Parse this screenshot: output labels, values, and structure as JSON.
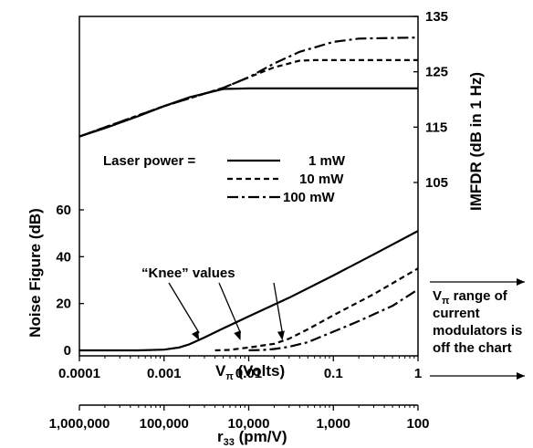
{
  "chart_data": {
    "type": "line",
    "x_axis": {
      "label_main": "V",
      "label_sub": "π",
      "label_rest": " (Volts)",
      "scale": "log",
      "range": [
        0.0001,
        1
      ],
      "ticks": [
        "0.0001",
        "0.001",
        "0.01",
        "0.1",
        "1"
      ],
      "tick_values": [
        0.0001,
        0.001,
        0.01,
        0.1,
        1
      ]
    },
    "secondary_x_axis": {
      "label_main": "r",
      "label_sub": "33",
      "label_rest": " (pm/V)",
      "ticks": [
        "1,000,000",
        "100,000",
        "10,000",
        "1,000",
        "100"
      ],
      "tick_vpi": [
        0.0001,
        0.001,
        0.01,
        0.1,
        1
      ]
    },
    "y_axis_left": {
      "label": "Noise Figure (dB)",
      "range": [
        0,
        60
      ],
      "ticks": [
        "0",
        "20",
        "40",
        "60"
      ],
      "tick_values": [
        0,
        20,
        40,
        60
      ]
    },
    "y_axis_right": {
      "label": "IMFDR (dB in 1 Hz)",
      "range": [
        105,
        135
      ],
      "ticks": [
        "105",
        "115",
        "125",
        "135"
      ],
      "tick_values": [
        105,
        115,
        125,
        135
      ]
    },
    "legend": {
      "title": "Laser power =",
      "entries": [
        "1 mW",
        "10 mW",
        "100 mW"
      ],
      "placement": "center"
    },
    "annotations": {
      "knee_label": "“Knee” values",
      "knee_arrows_x": [
        0.0026,
        0.008,
        0.025
      ],
      "side_note_lines": [
        "V",
        "π",
        " range of",
        "current",
        "modulators is",
        "off the chart"
      ]
    },
    "series": [
      {
        "name": "1 mW",
        "style": "solid",
        "axis": "left",
        "x": [
          0.0001,
          0.0005,
          0.001,
          0.0015,
          0.002,
          0.003,
          0.005,
          0.01,
          0.03,
          0.1,
          0.3,
          1
        ],
        "y": [
          0,
          0,
          0.3,
          1.2,
          2.6,
          5.5,
          9.4,
          14.5,
          22.5,
          32,
          41,
          51
        ]
      },
      {
        "name": "10 mW",
        "style": "dash",
        "axis": "left",
        "x": [
          0.004,
          0.006,
          0.008,
          0.01,
          0.02,
          0.03,
          0.05,
          0.1,
          0.3,
          1
        ],
        "y": [
          0,
          0.2,
          0.8,
          1.2,
          2.8,
          5,
          9,
          15,
          24,
          35
        ]
      },
      {
        "name": "100 mW",
        "style": "dashdot",
        "axis": "left",
        "x": [
          0.01,
          0.015,
          0.02,
          0.03,
          0.05,
          0.1,
          0.2,
          0.5,
          1
        ],
        "y": [
          0,
          0.2,
          0.6,
          1.5,
          3.5,
          8,
          12.5,
          19,
          26
        ]
      },
      {
        "name": "1 mW",
        "style": "solid",
        "axis": "right",
        "x": [
          0.0001,
          0.0002,
          0.0005,
          0.001,
          0.002,
          0.005,
          0.01,
          1
        ],
        "y": [
          113.3,
          114.8,
          117,
          118.8,
          120.4,
          121.9,
          122,
          122
        ]
      },
      {
        "name": "10 mW",
        "style": "dash",
        "axis": "right",
        "x": [
          0.0001,
          0.001,
          0.005,
          0.01,
          0.02,
          0.04,
          0.06,
          1
        ],
        "y": [
          113.3,
          118.8,
          122.1,
          124,
          125.8,
          127,
          127.1,
          127.1
        ]
      },
      {
        "name": "100 mW",
        "style": "dashdot",
        "axis": "right",
        "x": [
          0.0001,
          0.001,
          0.005,
          0.01,
          0.02,
          0.04,
          0.1,
          0.2,
          1
        ],
        "y": [
          113.3,
          118.8,
          122.1,
          124,
          126.5,
          128.6,
          130.4,
          131,
          131.2
        ]
      }
    ]
  }
}
